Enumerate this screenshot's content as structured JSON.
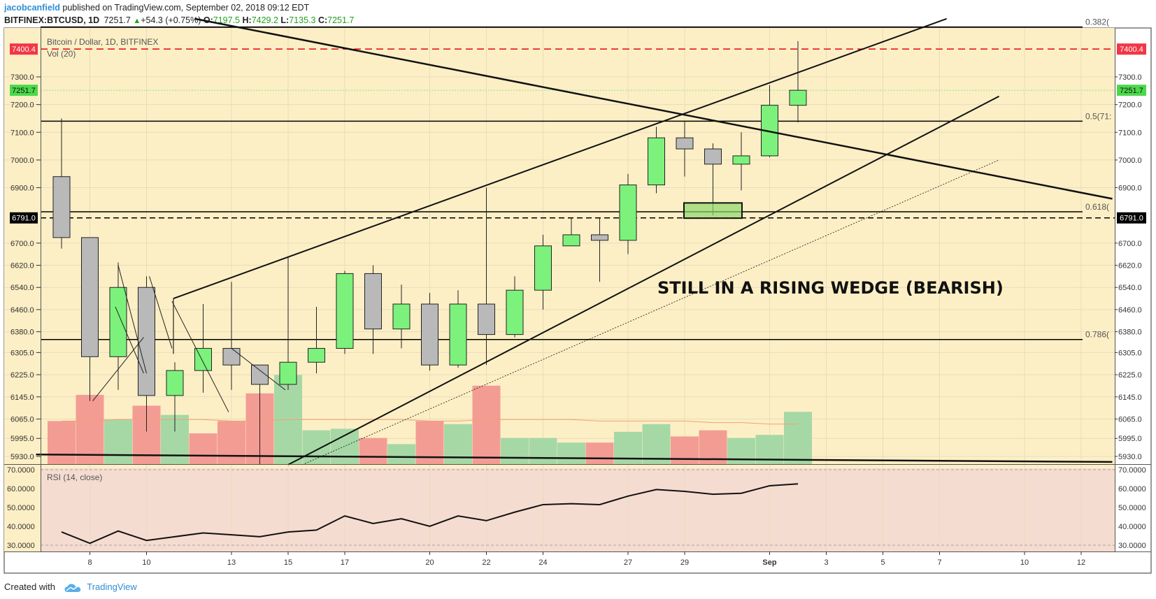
{
  "header": {
    "author": "jacobcanfield",
    "published_text": "published on TradingView.com, September 02, 2018 09:12 EDT",
    "symbol": "BITFINEX:BTCUSD, 1D",
    "last": "7251.7",
    "change": "+54.3 (+0.75%)",
    "open_label": "O:",
    "open": "7197.5",
    "high_label": "H:",
    "high": "7429.2",
    "low_label": "L:",
    "low": "7135.3",
    "close_label": "C:",
    "close": "7251.7"
  },
  "footer": {
    "created_with": "Created with",
    "brand": "TradingView"
  },
  "chart_data": [
    {
      "type": "candlestick",
      "title": "Bitcoin / Dollar, 1D, BITFINEX",
      "volume_label": "Vol (20)",
      "annotation": "STILL IN A RISING WEDGE (BEARISH)",
      "ylim": [
        5900,
        7510
      ],
      "y_ticks": [
        5930.0,
        5995.0,
        6065.0,
        6145.0,
        6225.0,
        6305.0,
        6380.0,
        6460.0,
        6540.0,
        6620.0,
        6700.0,
        6900.0,
        7000.0,
        7100.0,
        7200.0,
        7300.0
      ],
      "y_tick_labels": [
        "5930.0",
        "5995.0",
        "6065.0",
        "6145.0",
        "6225.0",
        "6305.0",
        "6380.0",
        "6460.0",
        "6540.0",
        "6620.0",
        "6700.0",
        "6900.0",
        "7000.0",
        "7100.0",
        "7200.0",
        "7300.0"
      ],
      "x_ticks": [
        {
          "day": 8,
          "label": "8"
        },
        {
          "day": 10,
          "label": "10"
        },
        {
          "day": 13,
          "label": "13"
        },
        {
          "day": 15,
          "label": "15"
        },
        {
          "day": 17,
          "label": "17"
        },
        {
          "day": 20,
          "label": "20"
        },
        {
          "day": 22,
          "label": "22"
        },
        {
          "day": 24,
          "label": "24"
        },
        {
          "day": 27,
          "label": "27"
        },
        {
          "day": 29,
          "label": "29"
        },
        {
          "day": 32,
          "label": "Sep"
        },
        {
          "day": 34,
          "label": "3"
        },
        {
          "day": 36,
          "label": "5"
        },
        {
          "day": 38,
          "label": "7"
        },
        {
          "day": 41,
          "label": "10"
        },
        {
          "day": 43,
          "label": "12"
        }
      ],
      "price_tags": [
        {
          "value": 7400.4,
          "label": "7400.4",
          "color": "#f23645"
        },
        {
          "value": 7251.7,
          "label": "7251.7",
          "color": "#4cd84c"
        },
        {
          "value": 6791.0,
          "label": "6791.0",
          "color": "#000000"
        }
      ],
      "fib_levels": [
        {
          "value": 7480,
          "label": "0.382("
        },
        {
          "value": 7140,
          "label": "0.5(71:"
        },
        {
          "value": 6813,
          "label": "0.618("
        },
        {
          "value": 6352,
          "label": "0.786("
        }
      ],
      "candles": [
        {
          "day": 7,
          "o": 6940,
          "h": 7150,
          "l": 6680,
          "c": 6720
        },
        {
          "day": 8,
          "o": 6720,
          "h": 6720,
          "l": 6130,
          "c": 6290
        },
        {
          "day": 9,
          "o": 6290,
          "h": 6630,
          "l": 6170,
          "c": 6540
        },
        {
          "day": 10,
          "o": 6540,
          "h": 6580,
          "l": 6020,
          "c": 6150
        },
        {
          "day": 11,
          "o": 6150,
          "h": 6270,
          "l": 6020,
          "c": 6240
        },
        {
          "day": 12,
          "o": 6240,
          "h": 6480,
          "l": 6160,
          "c": 6320
        },
        {
          "day": 13,
          "o": 6320,
          "h": 6560,
          "l": 6170,
          "c": 6260
        },
        {
          "day": 14,
          "o": 6260,
          "h": 6260,
          "l": 5900,
          "c": 6190
        },
        {
          "day": 15,
          "o": 6190,
          "h": 6650,
          "l": 6170,
          "c": 6270
        },
        {
          "day": 16,
          "o": 6270,
          "h": 6470,
          "l": 6230,
          "c": 6320
        },
        {
          "day": 17,
          "o": 6320,
          "h": 6600,
          "l": 6300,
          "c": 6590
        },
        {
          "day": 18,
          "o": 6590,
          "h": 6620,
          "l": 6300,
          "c": 6390
        },
        {
          "day": 19,
          "o": 6390,
          "h": 6550,
          "l": 6320,
          "c": 6480
        },
        {
          "day": 20,
          "o": 6480,
          "h": 6520,
          "l": 6240,
          "c": 6260
        },
        {
          "day": 21,
          "o": 6260,
          "h": 6530,
          "l": 6250,
          "c": 6480
        },
        {
          "day": 22,
          "o": 6480,
          "h": 6900,
          "l": 6260,
          "c": 6370
        },
        {
          "day": 23,
          "o": 6370,
          "h": 6580,
          "l": 6360,
          "c": 6530
        },
        {
          "day": 24,
          "o": 6530,
          "h": 6730,
          "l": 6460,
          "c": 6690
        },
        {
          "day": 25,
          "o": 6690,
          "h": 6790,
          "l": 6690,
          "c": 6730
        },
        {
          "day": 26,
          "o": 6730,
          "h": 6790,
          "l": 6560,
          "c": 6710
        },
        {
          "day": 27,
          "o": 6710,
          "h": 6950,
          "l": 6660,
          "c": 6910
        },
        {
          "day": 28,
          "o": 6910,
          "h": 7120,
          "l": 6880,
          "c": 7080
        },
        {
          "day": 29,
          "o": 7080,
          "h": 7140,
          "l": 6940,
          "c": 7040
        },
        {
          "day": 30,
          "o": 7040,
          "h": 7060,
          "l": 6800,
          "c": 6985
        },
        {
          "day": 31,
          "o": 6985,
          "h": 7100,
          "l": 6890,
          "c": 7015
        },
        {
          "day": 32,
          "o": 7015,
          "h": 7270,
          "l": 7010,
          "c": 7197.5
        },
        {
          "day": 33,
          "o": 7197.5,
          "h": 7429.2,
          "l": 7135.3,
          "c": 7251.7
        }
      ],
      "volume": [
        {
          "day": 7,
          "v": 0.28,
          "dir": "down"
        },
        {
          "day": 8,
          "v": 0.45,
          "dir": "down"
        },
        {
          "day": 9,
          "v": 0.29,
          "dir": "up"
        },
        {
          "day": 10,
          "v": 0.38,
          "dir": "down"
        },
        {
          "day": 11,
          "v": 0.32,
          "dir": "up"
        },
        {
          "day": 12,
          "v": 0.2,
          "dir": "down"
        },
        {
          "day": 13,
          "v": 0.28,
          "dir": "down"
        },
        {
          "day": 14,
          "v": 0.46,
          "dir": "down"
        },
        {
          "day": 15,
          "v": 0.58,
          "dir": "up"
        },
        {
          "day": 16,
          "v": 0.22,
          "dir": "up"
        },
        {
          "day": 17,
          "v": 0.23,
          "dir": "up"
        },
        {
          "day": 18,
          "v": 0.17,
          "dir": "down"
        },
        {
          "day": 19,
          "v": 0.13,
          "dir": "up"
        },
        {
          "day": 20,
          "v": 0.28,
          "dir": "down"
        },
        {
          "day": 21,
          "v": 0.26,
          "dir": "up"
        },
        {
          "day": 22,
          "v": 0.51,
          "dir": "down"
        },
        {
          "day": 23,
          "v": 0.17,
          "dir": "up"
        },
        {
          "day": 24,
          "v": 0.17,
          "dir": "up"
        },
        {
          "day": 25,
          "v": 0.14,
          "dir": "up"
        },
        {
          "day": 26,
          "v": 0.14,
          "dir": "down"
        },
        {
          "day": 27,
          "v": 0.21,
          "dir": "up"
        },
        {
          "day": 28,
          "v": 0.26,
          "dir": "up"
        },
        {
          "day": 29,
          "v": 0.18,
          "dir": "down"
        },
        {
          "day": 30,
          "v": 0.22,
          "dir": "down"
        },
        {
          "day": 31,
          "v": 0.17,
          "dir": "up"
        },
        {
          "day": 32,
          "v": 0.19,
          "dir": "up"
        },
        {
          "day": 33,
          "v": 0.34,
          "dir": "up"
        }
      ],
      "volume_ma": [
        0.28,
        0.28,
        0.29,
        0.29,
        0.29,
        0.29,
        0.28,
        0.28,
        0.29,
        0.29,
        0.29,
        0.29,
        0.29,
        0.28,
        0.28,
        0.29,
        0.29,
        0.29,
        0.29,
        0.28,
        0.28,
        0.28,
        0.28,
        0.27,
        0.27,
        0.26,
        0.26
      ],
      "drawings": {
        "wedge_upper": [
          {
            "day": 10.95,
            "price": 6500
          },
          {
            "day": 38.25,
            "price": 7510
          }
        ],
        "wedge_lower": [
          {
            "day": 15,
            "price": 5900
          },
          {
            "day": 40.1,
            "price": 7230
          }
        ],
        "wedge_lower_dotted": [
          {
            "day": 15.5,
            "price": 5900
          },
          {
            "day": 40.1,
            "price": 7000
          }
        ],
        "down_trend": [
          {
            "day": 11.7,
            "price": 7510
          },
          {
            "day": 44.1,
            "price": 6860
          }
        ],
        "floor_line": [
          {
            "day": 6.1,
            "price": 5937
          },
          {
            "day": 44.1,
            "price": 5910
          }
        ],
        "support_box": {
          "day_from": 29,
          "day_to": 31,
          "price_low": 6790,
          "price_high": 6845
        }
      }
    },
    {
      "type": "line",
      "title": "RSI (14, close)",
      "ylim": [
        28,
        72
      ],
      "y_ticks": [
        30,
        40,
        50,
        60,
        70
      ],
      "y_tick_labels": [
        "30.0000",
        "40.0000",
        "50.0000",
        "60.0000",
        "70.0000"
      ],
      "days": [
        7,
        8,
        9,
        10,
        11,
        12,
        13,
        14,
        15,
        16,
        17,
        18,
        19,
        20,
        21,
        22,
        23,
        24,
        25,
        26,
        27,
        28,
        29,
        30,
        31,
        32,
        33
      ],
      "values": [
        37,
        31,
        37.5,
        32.5,
        34.5,
        36.5,
        35.5,
        34.5,
        37,
        38,
        45.5,
        41.5,
        44,
        40,
        45.5,
        43,
        47.5,
        51.5,
        52,
        51.5,
        56,
        59.5,
        58.5,
        57,
        57.5,
        61.5,
        62.5
      ]
    }
  ],
  "colors": {
    "up": "#7cf27c",
    "down": "#b9b9b9",
    "volume_up": "#a6d8a6",
    "volume_down": "#f39c94",
    "main_bg": "#fdefc5",
    "rsi_bg": "#f5dcd0",
    "resistance": "#e8151c"
  }
}
